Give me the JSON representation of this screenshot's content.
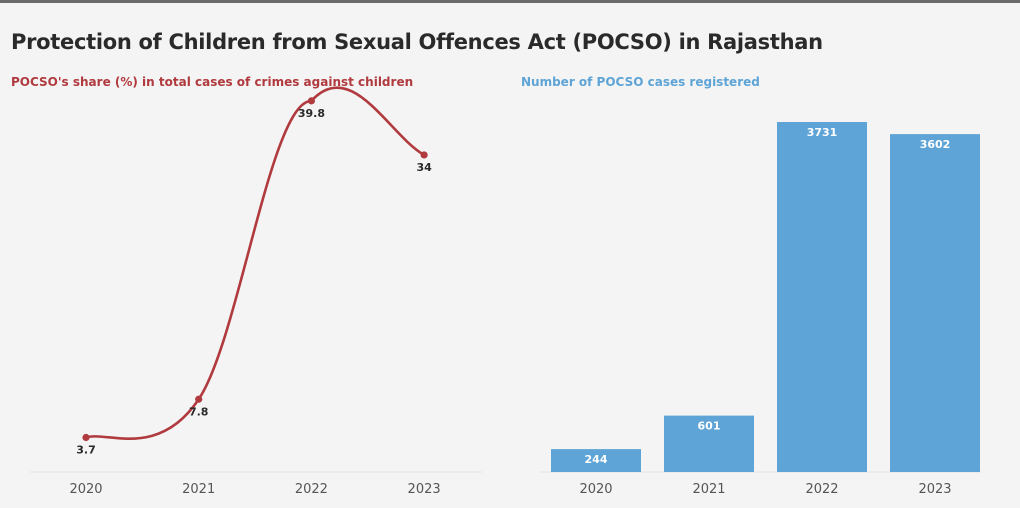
{
  "title": "Protection of Children from Sexual Offences Act (POCSO) in Rajasthan",
  "colors": {
    "line": "#b03a3e",
    "bar": "#5ea4d6",
    "title": "#2a2a2a",
    "axis": "#e4e4e4"
  },
  "chart_data": [
    {
      "type": "line",
      "title": "POCSO's share (%) in total cases of crimes against children",
      "categories": [
        "2020",
        "2021",
        "2022",
        "2023"
      ],
      "values": [
        3.7,
        7.8,
        39.8,
        34
      ],
      "value_labels": [
        "3.7",
        "7.8",
        "39.8",
        "34"
      ],
      "ylim": [
        0,
        40
      ],
      "grid": false
    },
    {
      "type": "bar",
      "title": "Number of POCSO cases registered",
      "categories": [
        "2020",
        "2021",
        "2022",
        "2023"
      ],
      "values": [
        244,
        601,
        3731,
        3602
      ],
      "value_labels": [
        "244",
        "601",
        "3731",
        "3602"
      ],
      "ylim": [
        0,
        3731
      ],
      "grid": false
    }
  ]
}
